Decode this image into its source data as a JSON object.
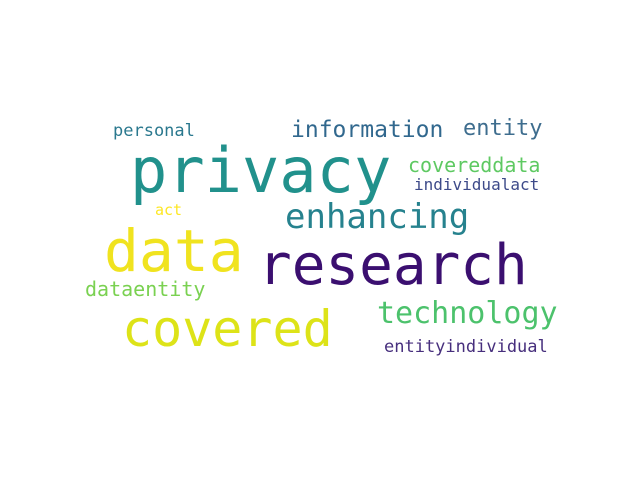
{
  "words": [
    {
      "text": "research",
      "color": "#3b0f70"
    },
    {
      "text": "privacy",
      "color": "#21918c"
    },
    {
      "text": "data",
      "color": "#f0e31f"
    },
    {
      "text": "covered",
      "color": "#dde318"
    },
    {
      "text": "enhancing",
      "color": "#26828e"
    },
    {
      "text": "technology",
      "color": "#4cc26c"
    },
    {
      "text": "information",
      "color": "#31688e"
    },
    {
      "text": "entity",
      "color": "#3e6d8e"
    },
    {
      "text": "covereddata",
      "color": "#5ec962"
    },
    {
      "text": "personal",
      "color": "#2a788e"
    },
    {
      "text": "individualact",
      "color": "#3d4a89"
    },
    {
      "text": "act",
      "color": "#fde725"
    },
    {
      "text": "dataentity",
      "color": "#7ad151"
    },
    {
      "text": "entityindividual",
      "color": "#472f7d"
    }
  ]
}
